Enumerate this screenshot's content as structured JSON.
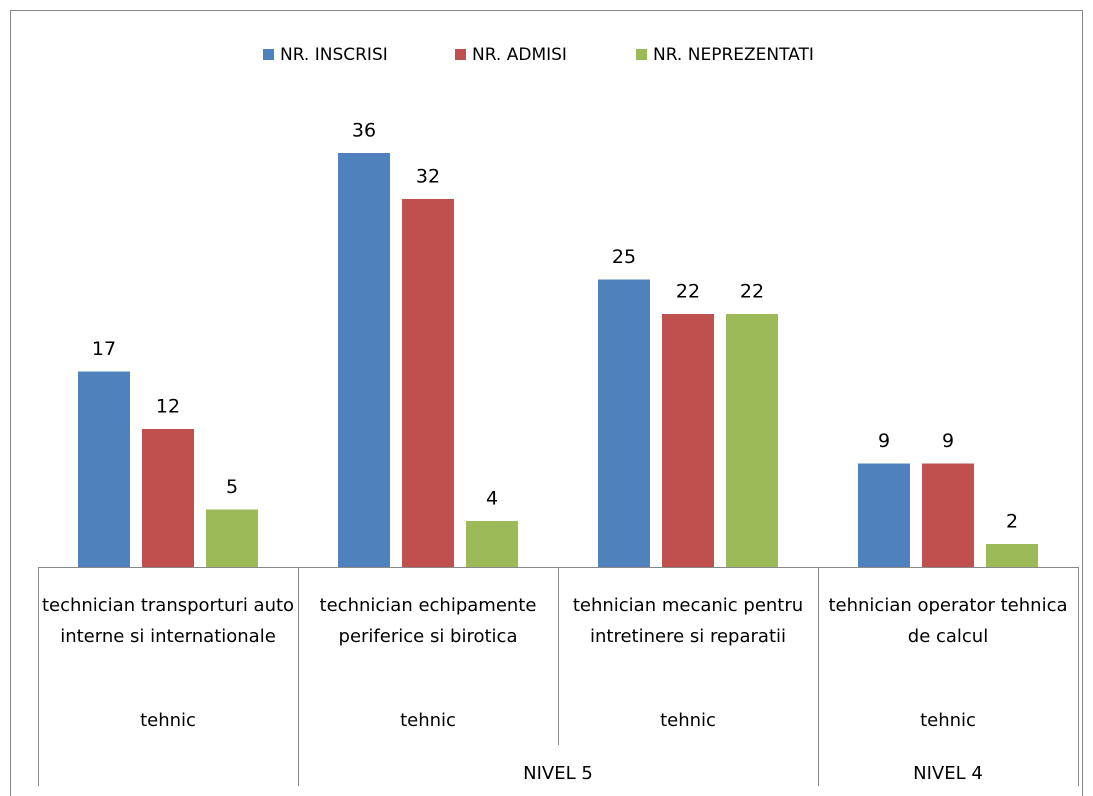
{
  "chart_data": {
    "type": "bar",
    "categories": [
      "technician transporturi auto interne si internationale",
      "technician echipamente periferice si birotica",
      "tehnician mecanic pentru intretinere si reparatii",
      "tehnician operator tehnica de calcul"
    ],
    "categories_level2": [
      "tehnic",
      "tehnic",
      "tehnic",
      "tehnic"
    ],
    "categories_level3": [
      {
        "label": null,
        "span": 1
      },
      {
        "label": "NIVEL 5",
        "span": 2
      },
      {
        "label": "NIVEL 4",
        "span": 1
      }
    ],
    "series": [
      {
        "name": "NR. INSCRISI",
        "color": "#4f81bd",
        "values": [
          17,
          36,
          25,
          9
        ]
      },
      {
        "name": "NR. ADMISI",
        "color": "#c0504d",
        "values": [
          12,
          32,
          22,
          9
        ]
      },
      {
        "name": "NR. NEPREZENTATI",
        "color": "#9bbb59",
        "values": [
          5,
          4,
          22,
          2
        ]
      }
    ],
    "ylim": [
      0,
      40
    ],
    "legend": "top",
    "grid": false,
    "data_labels": true
  }
}
